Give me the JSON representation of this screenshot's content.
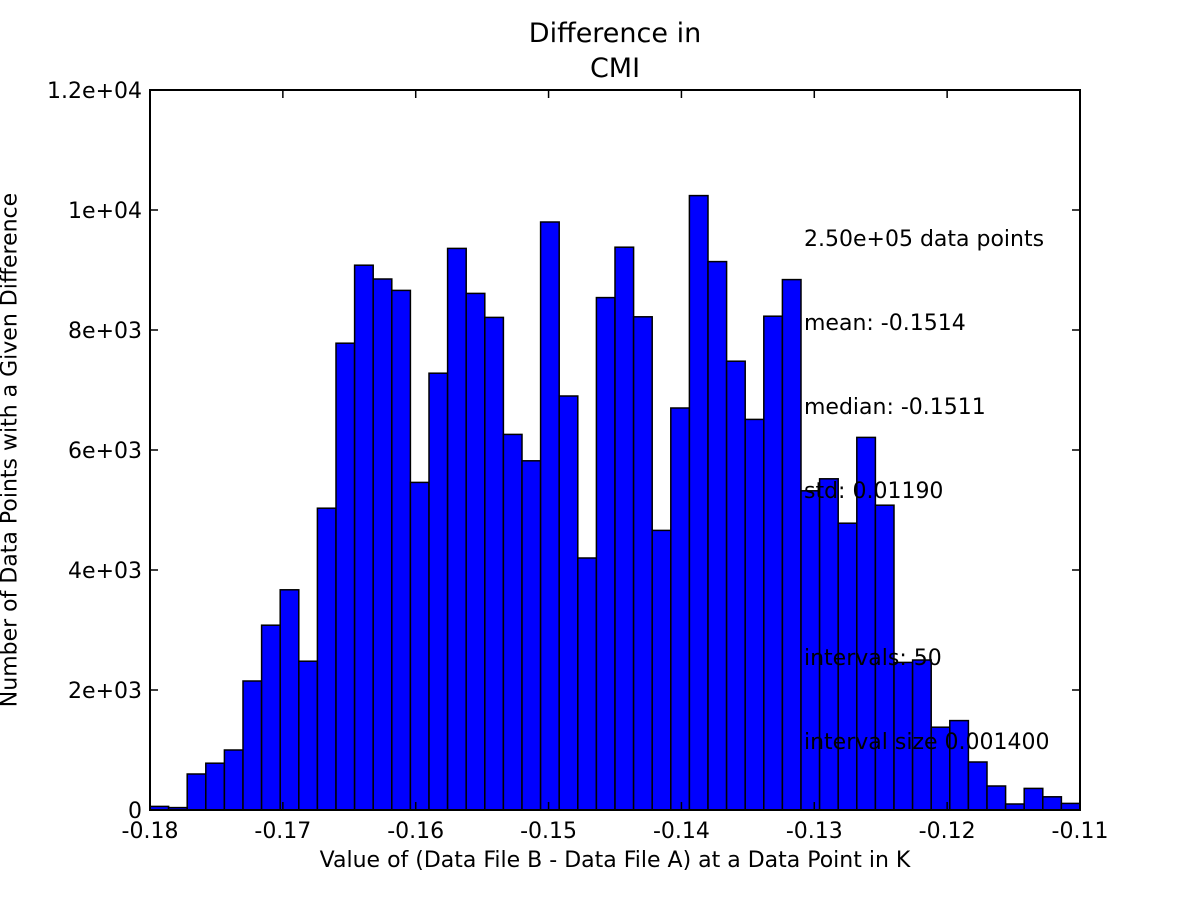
{
  "chart_data": {
    "type": "bar",
    "title_lines": [
      "Difference in",
      "CMI"
    ],
    "xlabel": "Value of (Data File B - Data File A) at a Data Point in K",
    "ylabel": "Number of Data Points with a Given Difference",
    "xlim": [
      -0.18,
      -0.11
    ],
    "ylim": [
      0,
      12000
    ],
    "x_ticks": [
      -0.18,
      -0.17,
      -0.16,
      -0.15,
      -0.14,
      -0.13,
      -0.12,
      -0.11
    ],
    "x_tick_labels": [
      "-0.18",
      "-0.17",
      "-0.16",
      "-0.15",
      "-0.14",
      "-0.13",
      "-0.12",
      "-0.11"
    ],
    "y_ticks": [
      0,
      2000,
      4000,
      6000,
      8000,
      10000,
      12000
    ],
    "y_tick_labels": [
      "0",
      "2e+03",
      "4e+03",
      "6e+03",
      "8e+03",
      "1e+04",
      "1.2e+04"
    ],
    "bin_start": -0.18,
    "bin_width": 0.0014,
    "bar_color": "#0000ff",
    "edge_color": "#000000",
    "grid": false,
    "values": [
      60,
      40,
      600,
      780,
      1000,
      2150,
      3080,
      3670,
      2480,
      5030,
      7780,
      9080,
      8850,
      8660,
      5460,
      7280,
      9360,
      8610,
      8210,
      6260,
      5820,
      9800,
      6900,
      4200,
      8540,
      9380,
      8220,
      4660,
      6700,
      10240,
      9140,
      7480,
      6510,
      8230,
      8840,
      5320,
      5520,
      4780,
      6210,
      5080,
      2460,
      2500,
      1380,
      1490,
      800,
      400,
      100,
      360,
      220,
      110
    ],
    "annotation_lines": [
      "2.50e+05 data points",
      "mean: -0.1514",
      "median: -0.1511",
      "std: 0.01190",
      "",
      "intervals: 50",
      "interval size 0.001400"
    ]
  }
}
